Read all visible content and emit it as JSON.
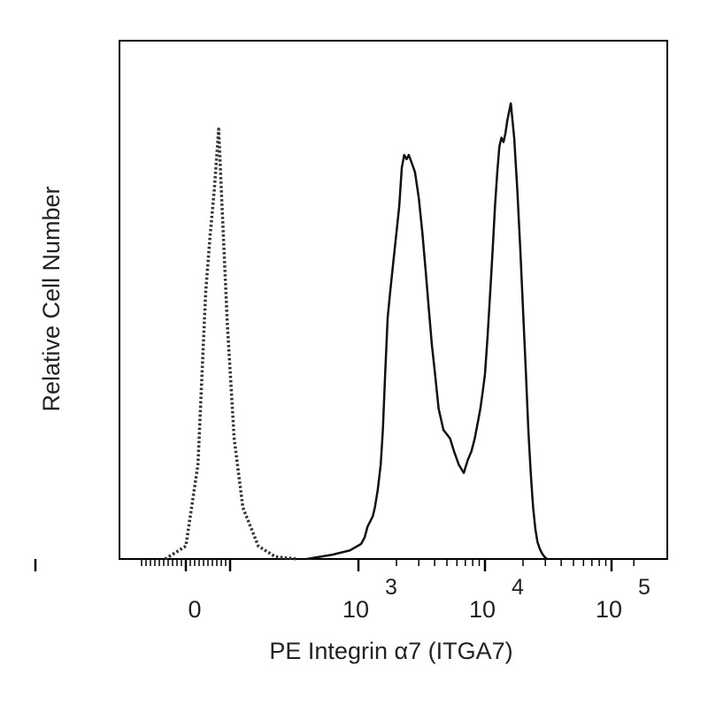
{
  "chart_data": {
    "type": "line",
    "title": "",
    "xlabel": "PE Integrin α7 (ITGA7)",
    "ylabel": "Relative Cell Number",
    "x_scale": "biexponential",
    "x_ticks": [
      {
        "value": 0,
        "base": "0",
        "exponent": ""
      },
      {
        "value": 1000,
        "base": "10",
        "exponent": "3"
      },
      {
        "value": 10000,
        "base": "10",
        "exponent": "4"
      },
      {
        "value": 100000,
        "base": "10",
        "exponent": "5"
      }
    ],
    "xlim": [
      -1000,
      150000
    ],
    "ylim": [
      0,
      1.2
    ],
    "grid": false,
    "legend": "none",
    "series": [
      {
        "style": "dotted",
        "color": "#333333",
        "x": [
          -120,
          0,
          70,
          115,
          140,
          165,
          190,
          210,
          240,
          280,
          330,
          420,
          520,
          650
        ],
        "y": [
          0.0,
          0.03,
          0.22,
          0.62,
          0.75,
          0.86,
          1.0,
          0.82,
          0.55,
          0.28,
          0.12,
          0.03,
          0.005,
          0.0
        ]
      },
      {
        "style": "solid",
        "color": "#111111",
        "x": [
          700,
          850,
          950,
          1050,
          1120,
          1180,
          1250,
          1300,
          1350,
          1420,
          1500,
          1560,
          1620,
          1700,
          1780,
          1900,
          2000,
          2100,
          2200,
          2300,
          2400,
          2500,
          2650,
          2800,
          3000,
          3200,
          3400,
          3600,
          3800,
          4000,
          4300,
          4700,
          5000,
          5300,
          5700,
          6200,
          6800,
          7300,
          7800,
          8300,
          8800,
          9200,
          9600,
          10000,
          10500,
          11000,
          11500,
          12000,
          12500,
          13000,
          13500,
          14000,
          14500,
          15000,
          15500,
          16000,
          17000,
          18000,
          19000,
          20000,
          21000,
          22000,
          23000,
          24000,
          25000,
          26000,
          27000,
          28000,
          29000,
          30000,
          31000
        ],
        "y": [
          0.0,
          0.01,
          0.02,
          0.035,
          0.05,
          0.075,
          0.09,
          0.1,
          0.12,
          0.16,
          0.22,
          0.3,
          0.42,
          0.56,
          0.62,
          0.7,
          0.76,
          0.82,
          0.91,
          0.94,
          0.93,
          0.94,
          0.92,
          0.9,
          0.84,
          0.76,
          0.67,
          0.58,
          0.5,
          0.44,
          0.35,
          0.3,
          0.29,
          0.28,
          0.25,
          0.22,
          0.2,
          0.23,
          0.25,
          0.28,
          0.32,
          0.35,
          0.39,
          0.43,
          0.52,
          0.62,
          0.72,
          0.82,
          0.9,
          0.96,
          0.98,
          0.97,
          0.99,
          1.02,
          1.04,
          1.06,
          0.98,
          0.86,
          0.72,
          0.58,
          0.44,
          0.3,
          0.2,
          0.12,
          0.07,
          0.04,
          0.025,
          0.015,
          0.008,
          0.003,
          0.0
        ]
      }
    ]
  }
}
